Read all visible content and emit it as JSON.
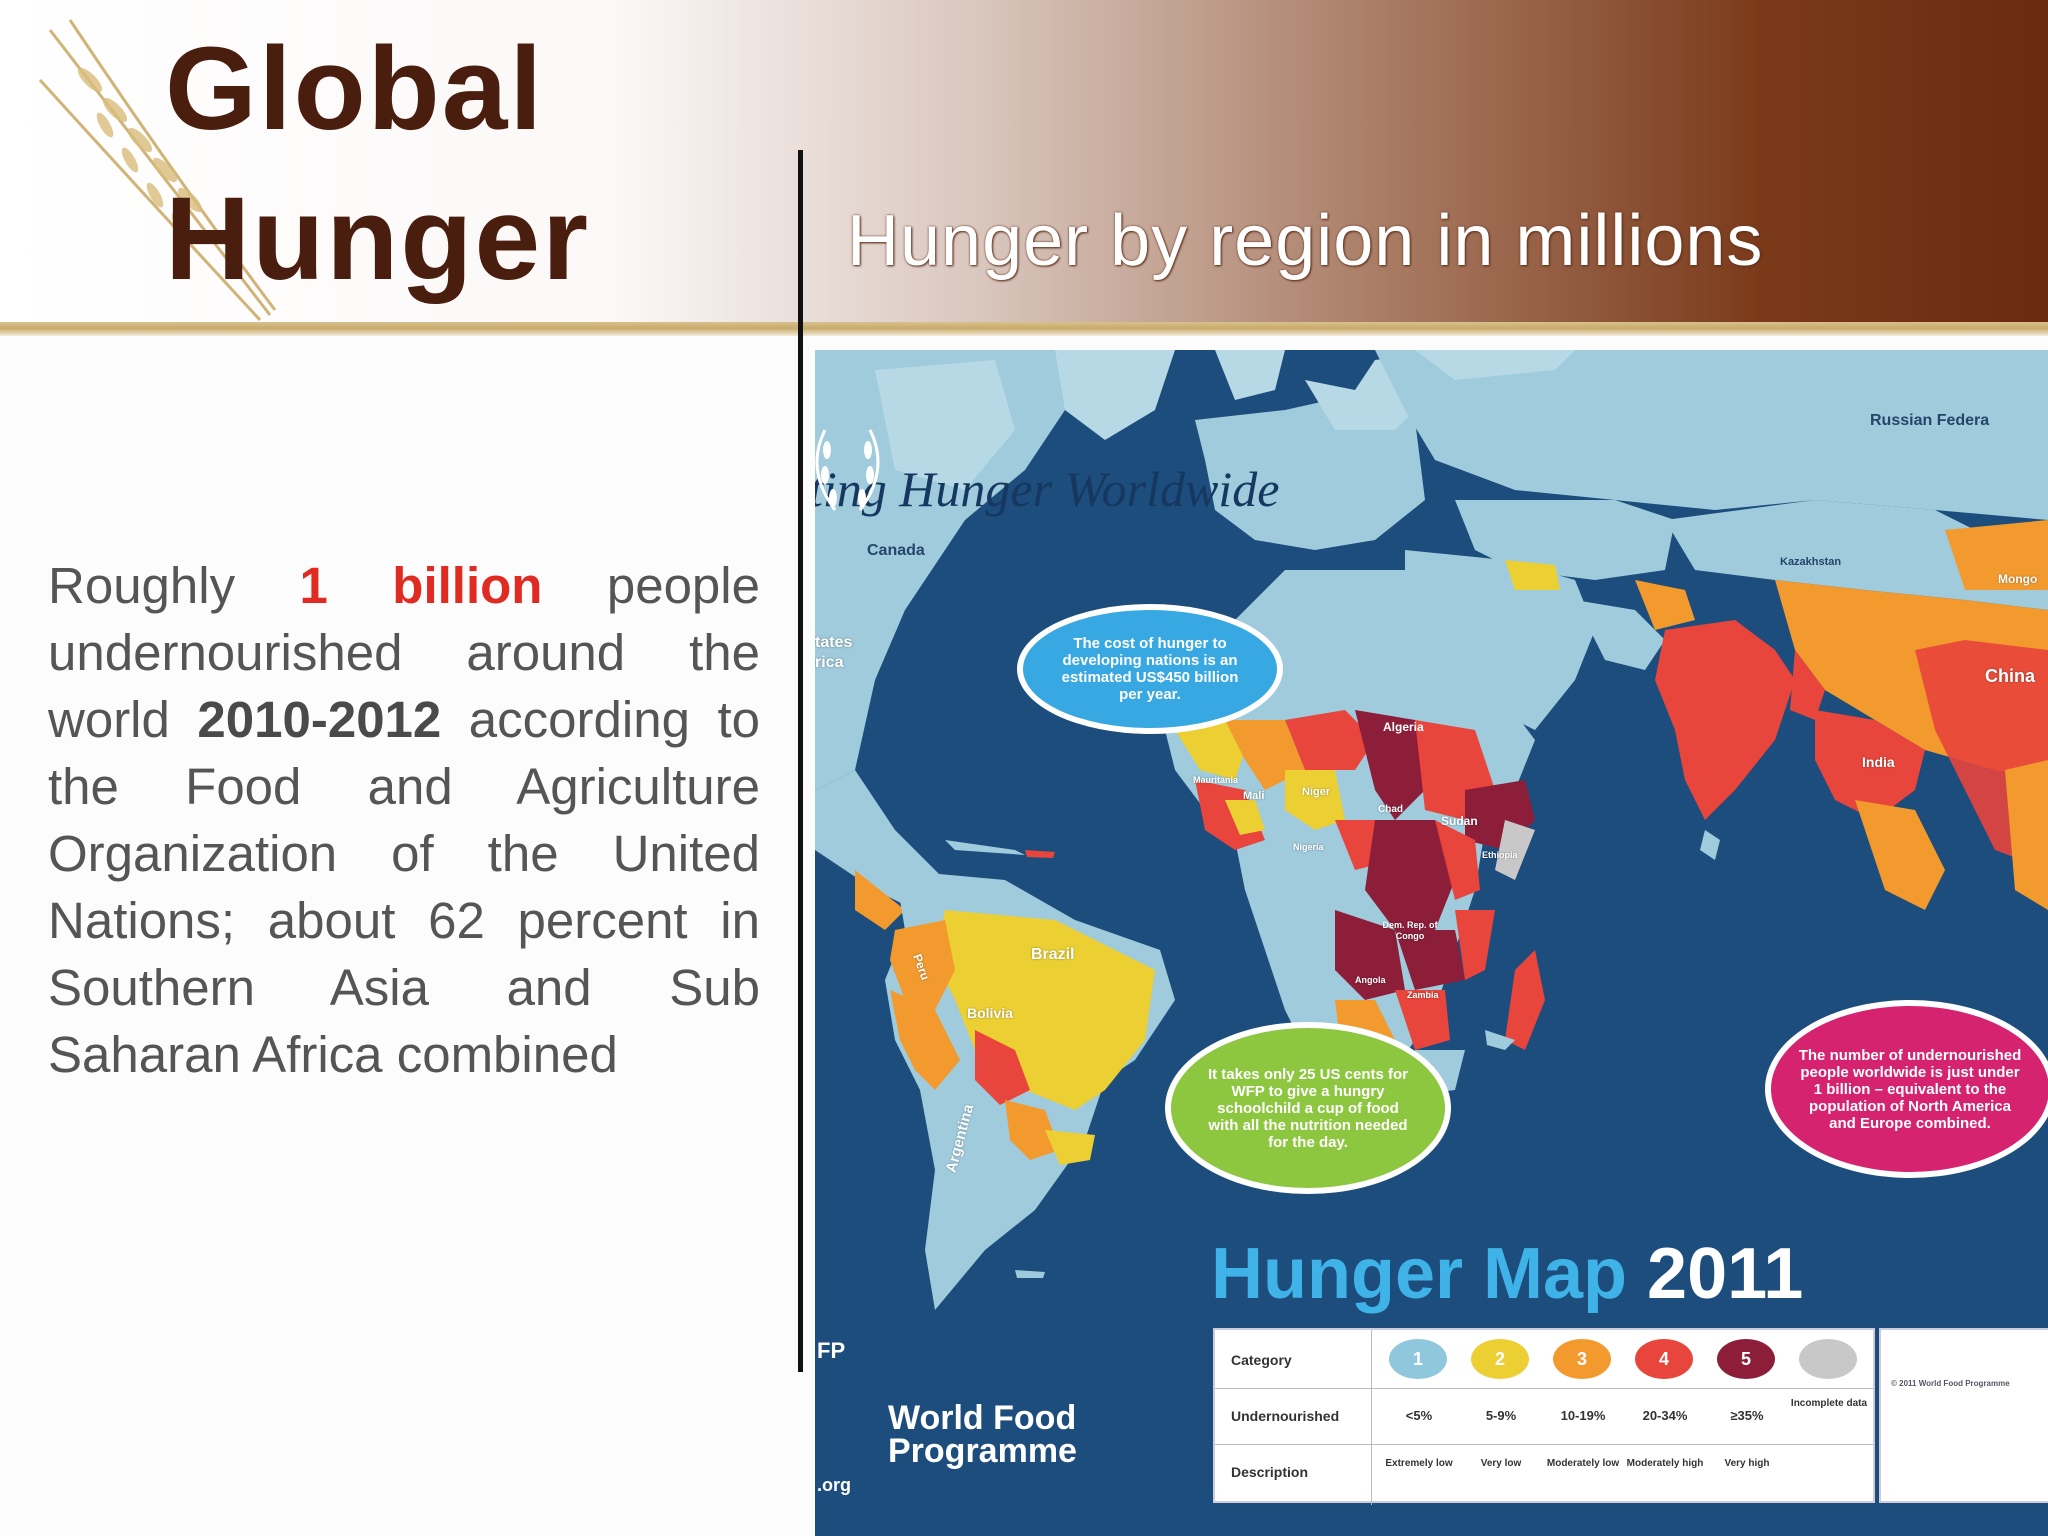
{
  "slide": {
    "title_line1": "Global",
    "title_line2": "Hunger",
    "subtitle": "Hunger by region in millions"
  },
  "body": {
    "t1": "Roughly ",
    "highlight": "1 billion",
    "t2": " people undernourished around the world ",
    "years": "2010-2012",
    "t3": " according to the Food and Agriculture Organization of the United Nations; about 62 percent in Southern Asia and Sub Saharan Africa combined"
  },
  "map": {
    "heading": "ting Hunger Worldwide",
    "title_a": "Hunger Map",
    "title_b": "2011",
    "labels": {
      "canada": "Canada",
      "states": "tates",
      "rica": "rica",
      "russia": "Russian Federa",
      "kazakhstan": "Kazakhstan",
      "mongolia": "Mongo",
      "china": "China",
      "india": "India",
      "algeria": "Algeria",
      "niger": "Niger",
      "mali": "Mali",
      "mauritania": "Mauritania",
      "chad": "Chad",
      "sudan": "Sudan",
      "ethiopia": "Ethiopia",
      "nigeria": "Nigeria",
      "drc": "Dem. Rep. of Congo",
      "angola": "Angola",
      "zambia": "Zambia",
      "brazil": "Brazil",
      "bolivia": "Bolivia",
      "peru": "Peru",
      "argentina": "Argentina"
    },
    "callouts": {
      "cost": "The cost of hunger to developing nations is an estimated US$450 billion per year.",
      "wfp": "It takes only 25 US cents for WFP to give a hungry schoolchild a cup of food with all the nutrition needed for the day.",
      "number": "The number of undernourished people worldwide is just under 1 billion – equivalent to the population of North America and Europe combined."
    },
    "wfp": {
      "abbr": "FP",
      "name": "World Food Programme",
      "org": ".org"
    },
    "legend": {
      "row_category": "Category",
      "row_under": "Undernourished",
      "row_desc": "Description",
      "categories": [
        {
          "num": "1",
          "color": "#8fc7dd",
          "pct": "<5%",
          "desc": "Extremely low"
        },
        {
          "num": "2",
          "color": "#ecd033",
          "pct": "5-9%",
          "desc": "Very low"
        },
        {
          "num": "3",
          "color": "#f39a2e",
          "pct": "10-19%",
          "desc": "Moderately low"
        },
        {
          "num": "4",
          "color": "#e8453c",
          "pct": "20-34%",
          "desc": "Moderately high"
        },
        {
          "num": "5",
          "color": "#8c1e3a",
          "pct": "≥35%",
          "desc": "Very high"
        },
        {
          "num": "",
          "color": "#c8c8c8",
          "pct": "Incomplete data",
          "desc": ""
        }
      ],
      "source_heading": "© 2011 World Food Programme"
    }
  }
}
